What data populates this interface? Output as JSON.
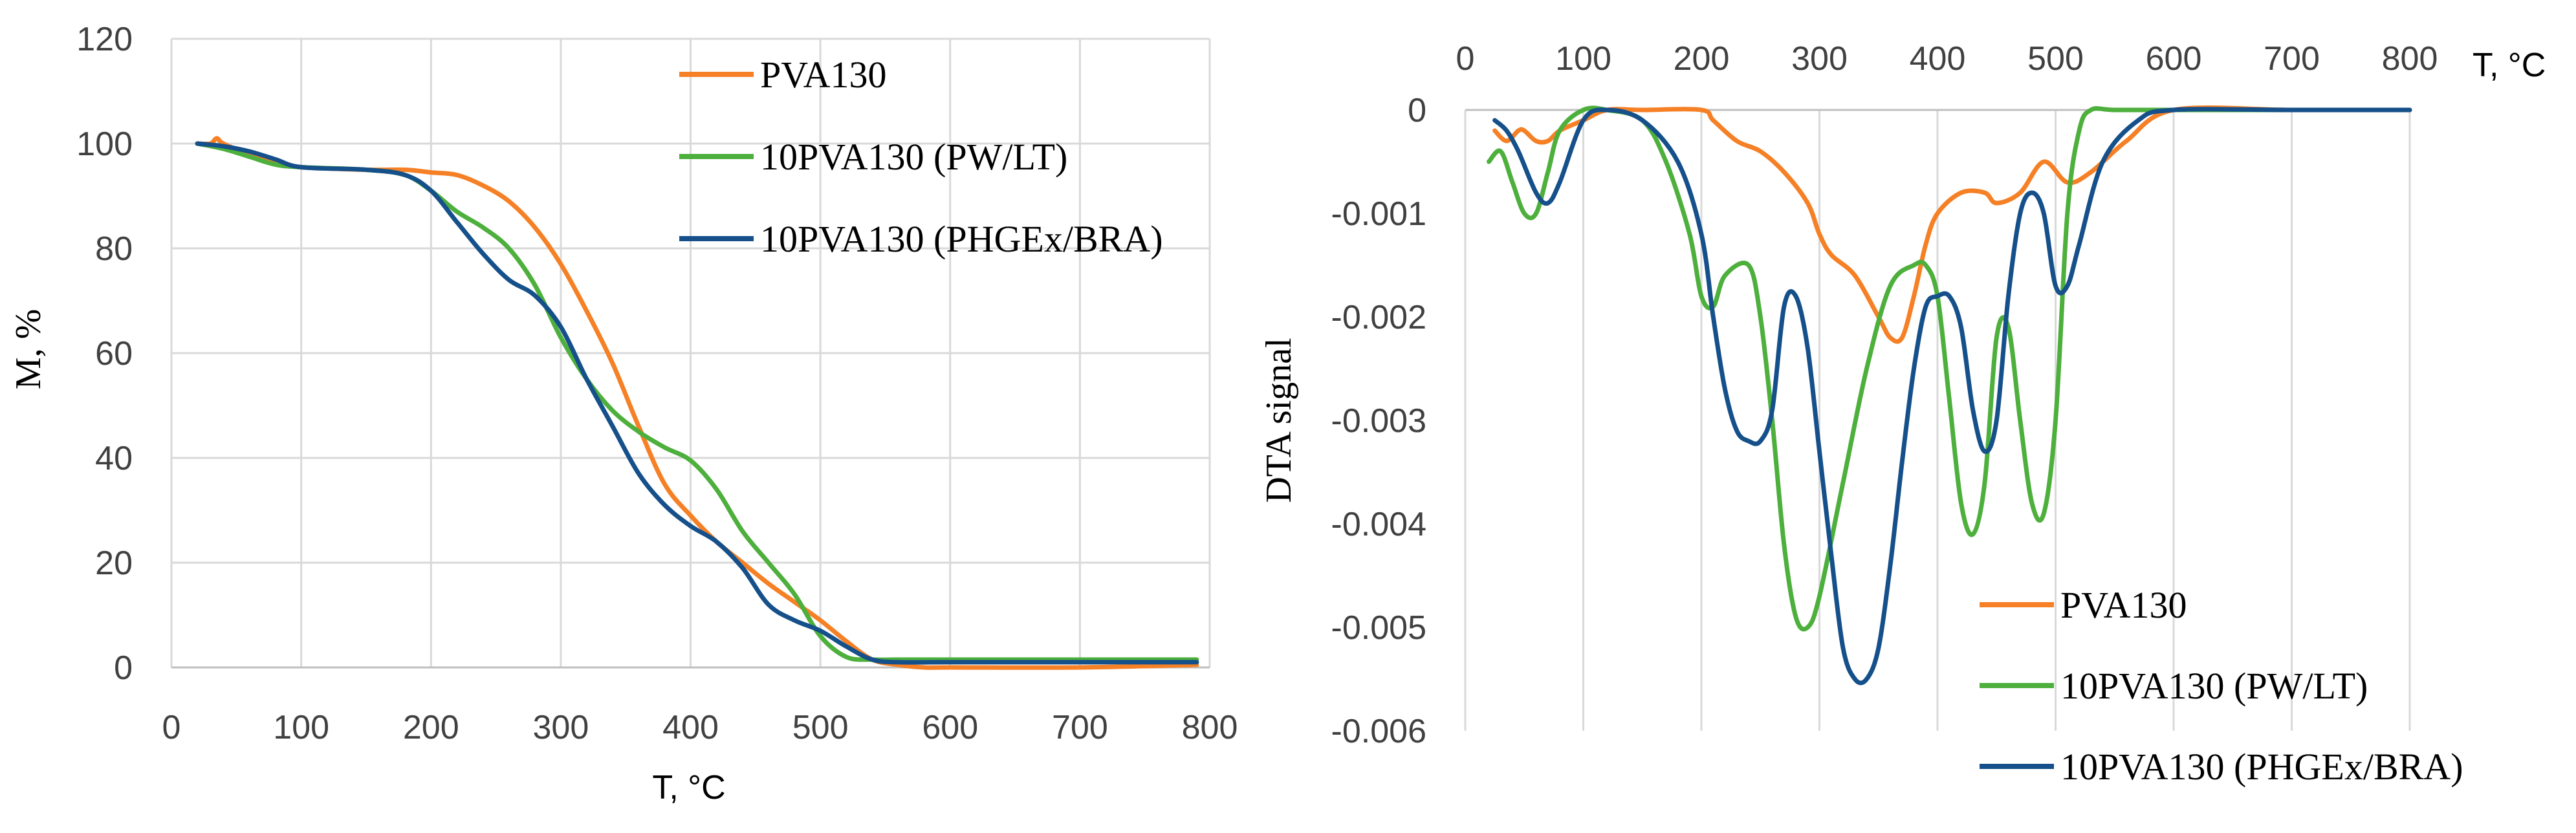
{
  "colors": {
    "PVA130": "#F58025",
    "10PVA130 (PW/LT)": "#4DAF3C",
    "10PVA130 (PHGEx/BRA)": "#15508A"
  },
  "chart_data": [
    {
      "type": "line",
      "title": "",
      "xlabel": "T, °C",
      "ylabel": "M, %",
      "xlim": [
        0,
        800
      ],
      "ylim": [
        0,
        120
      ],
      "xticks": [
        0,
        100,
        200,
        300,
        400,
        500,
        600,
        700,
        800
      ],
      "yticks": [
        0,
        20,
        40,
        60,
        80,
        100,
        120
      ],
      "x_tick_labels": [
        "0",
        "100",
        "200",
        "300",
        "400",
        "500",
        "600",
        "700",
        "800"
      ],
      "y_tick_labels": [
        "0",
        "20",
        "40",
        "60",
        "80",
        "100",
        "120"
      ],
      "grid": "vertical and horizontal",
      "legend_position": "top-right",
      "series": [
        {
          "name": "PVA130",
          "x": [
            20,
            30,
            35,
            40,
            60,
            90,
            100,
            150,
            180,
            200,
            220,
            240,
            260,
            280,
            300,
            320,
            340,
            360,
            380,
            400,
            420,
            440,
            460,
            480,
            500,
            520,
            540,
            560,
            580,
            600,
            700,
            790
          ],
          "y": [
            100,
            100,
            101,
            100,
            98,
            96,
            95.5,
            95,
            95,
            94.5,
            94,
            92,
            89,
            84,
            77,
            68,
            58,
            46,
            35,
            29,
            24,
            20,
            16,
            12.5,
            9,
            5,
            1.5,
            0.5,
            0,
            0,
            0,
            0.5
          ]
        },
        {
          "name": "10PVA130 (PW/LT)",
          "x": [
            20,
            40,
            60,
            80,
            100,
            150,
            180,
            200,
            220,
            240,
            260,
            280,
            300,
            320,
            340,
            360,
            380,
            400,
            420,
            440,
            460,
            480,
            500,
            520,
            540,
            560,
            600,
            700,
            790
          ],
          "y": [
            100,
            99,
            97.5,
            96,
            95.5,
            95,
            94,
            91,
            87,
            84,
            80,
            73,
            63,
            55,
            49,
            45,
            42,
            39.5,
            34,
            26,
            20,
            14,
            6,
            2,
            1.5,
            1.5,
            1.5,
            1.5,
            1.5
          ]
        },
        {
          "name": "10PVA130 (PHGEx/BRA)",
          "x": [
            20,
            40,
            60,
            80,
            100,
            150,
            180,
            200,
            220,
            240,
            260,
            280,
            300,
            320,
            340,
            360,
            380,
            400,
            420,
            440,
            460,
            480,
            500,
            520,
            540,
            560,
            600,
            700,
            790
          ],
          "y": [
            100,
            99.5,
            98.5,
            97,
            95.5,
            95,
            94,
            91,
            85,
            79,
            74,
            71,
            65,
            55,
            46,
            37,
            31,
            27,
            24,
            19,
            12,
            9,
            7,
            4,
            1.5,
            1,
            1,
            1,
            1
          ]
        }
      ]
    },
    {
      "type": "line",
      "title": "",
      "xlabel": "T, °C",
      "ylabel": "DTA signal",
      "xlim": [
        0,
        800
      ],
      "ylim": [
        -0.006,
        0
      ],
      "xticks": [
        0,
        100,
        200,
        300,
        400,
        500,
        600,
        700,
        800
      ],
      "yticks": [
        0,
        -0.001,
        -0.002,
        -0.003,
        -0.004,
        -0.005,
        -0.006
      ],
      "x_tick_labels": [
        "0",
        "100",
        "200",
        "300",
        "400",
        "500",
        "600",
        "700",
        "800"
      ],
      "y_tick_labels": [
        "0",
        "-0.001",
        "-0.002",
        "-0.003",
        "-0.004",
        "-0.005",
        "-0.006"
      ],
      "x_axis_position": "top",
      "grid": "vertical",
      "legend_position": "bottom-right",
      "series": [
        {
          "name": "PVA130",
          "x": [
            25,
            35,
            45,
            50,
            60,
            70,
            80,
            100,
            120,
            150,
            200,
            210,
            230,
            250,
            270,
            290,
            300,
            310,
            330,
            350,
            360,
            370,
            380,
            390,
            400,
            420,
            440,
            450,
            470,
            490,
            510,
            530,
            560,
            600,
            700,
            800
          ],
          "y": [
            -0.0002,
            -0.0003,
            -0.0002,
            -0.0002,
            -0.0003,
            -0.0003,
            -0.0002,
            -0.0001,
            0,
            0,
            0,
            -0.0001,
            -0.0003,
            -0.0004,
            -0.0006,
            -0.0009,
            -0.0012,
            -0.0014,
            -0.0016,
            -0.002,
            -0.0022,
            -0.0022,
            -0.0018,
            -0.0013,
            -0.001,
            -0.0008,
            -0.0008,
            -0.0009,
            -0.0008,
            -0.0005,
            -0.0007,
            -0.0006,
            -0.0003,
            0,
            0,
            0
          ]
        },
        {
          "name": "10PVA130 (PW/LT)",
          "x": [
            20,
            30,
            40,
            50,
            60,
            70,
            80,
            100,
            120,
            150,
            170,
            190,
            200,
            210,
            220,
            240,
            250,
            260,
            270,
            280,
            290,
            300,
            320,
            340,
            360,
            380,
            390,
            400,
            410,
            420,
            430,
            440,
            450,
            460,
            470,
            480,
            490,
            500,
            510,
            520,
            530,
            550,
            600,
            700,
            800
          ],
          "y": [
            -0.0005,
            -0.0004,
            -0.0007,
            -0.001,
            -0.001,
            -0.0006,
            -0.0002,
            0,
            0,
            -0.0001,
            -0.0005,
            -0.0012,
            -0.0018,
            -0.0019,
            -0.0016,
            -0.0015,
            -0.002,
            -0.003,
            -0.0042,
            -0.0049,
            -0.005,
            -0.0047,
            -0.0036,
            -0.0025,
            -0.0017,
            -0.0015,
            -0.0015,
            -0.0018,
            -0.0028,
            -0.0038,
            -0.0041,
            -0.0036,
            -0.0022,
            -0.0021,
            -0.003,
            -0.0038,
            -0.0039,
            -0.003,
            -0.001,
            -0.0002,
            0,
            0,
            0,
            0,
            0
          ]
        },
        {
          "name": "10PVA130 (PHGEx/BRA)",
          "x": [
            25,
            35,
            45,
            60,
            70,
            80,
            100,
            120,
            150,
            180,
            200,
            210,
            220,
            230,
            240,
            250,
            260,
            270,
            280,
            290,
            300,
            310,
            320,
            330,
            340,
            350,
            360,
            370,
            380,
            390,
            400,
            410,
            420,
            430,
            440,
            450,
            460,
            470,
            480,
            490,
            500,
            510,
            520,
            540,
            570,
            600,
            700,
            800
          ],
          "y": [
            -0.0001,
            -0.0002,
            -0.0004,
            -0.0008,
            -0.0009,
            -0.0007,
            -0.0001,
            0,
            -0.0001,
            -0.0005,
            -0.0012,
            -0.002,
            -0.0027,
            -0.0031,
            -0.0032,
            -0.0032,
            -0.0029,
            -0.0019,
            -0.0018,
            -0.0023,
            -0.0033,
            -0.0043,
            -0.0052,
            -0.0055,
            -0.0055,
            -0.0052,
            -0.0044,
            -0.0034,
            -0.0025,
            -0.0019,
            -0.0018,
            -0.0018,
            -0.0021,
            -0.0029,
            -0.0033,
            -0.003,
            -0.0018,
            -0.001,
            -0.0008,
            -0.001,
            -0.0017,
            -0.0017,
            -0.0013,
            -0.0005,
            -0.0001,
            0,
            0,
            0
          ]
        }
      ]
    }
  ]
}
